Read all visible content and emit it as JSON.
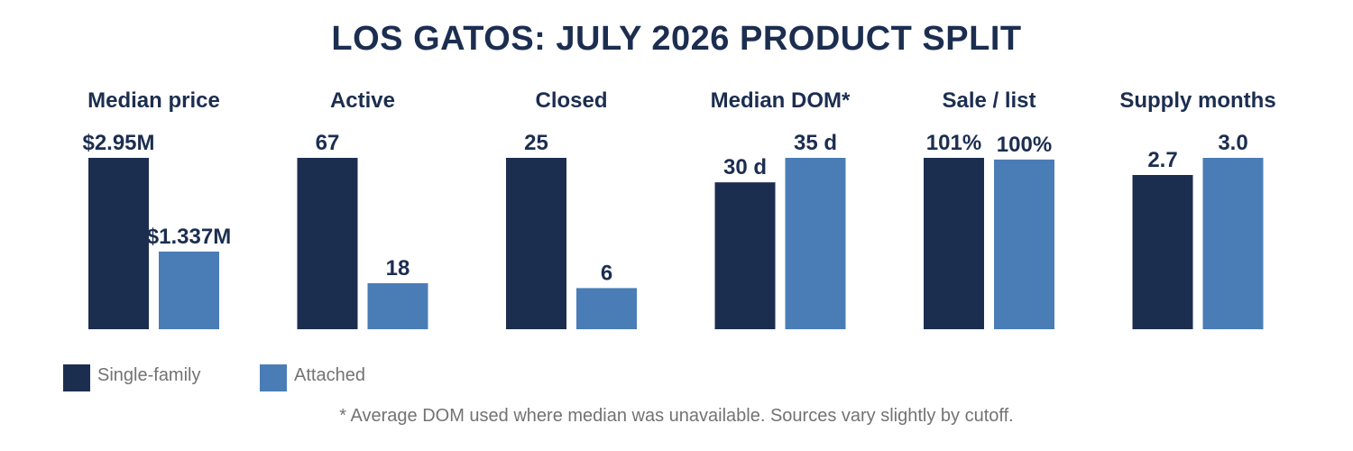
{
  "title": "LOS GATOS: JULY 2026 PRODUCT SPLIT",
  "colors": {
    "single_family": "#1c2e50",
    "attached": "#4a7db6",
    "text": "#1c2e50",
    "muted": "#737373"
  },
  "legend": {
    "single_family": "Single-family",
    "attached": "Attached"
  },
  "footnote": "* Average DOM used where median was unavailable. Sources vary slightly by cutoff.",
  "chart_data": [
    {
      "type": "bar",
      "title": "Median price",
      "categories": [
        "Single-family",
        "Attached"
      ],
      "values": [
        2.95,
        1.337
      ],
      "labels": [
        "$2.95M",
        "$1.337M"
      ]
    },
    {
      "type": "bar",
      "title": "Active",
      "categories": [
        "Single-family",
        "Attached"
      ],
      "values": [
        67,
        18
      ],
      "labels": [
        "67",
        "18"
      ]
    },
    {
      "type": "bar",
      "title": "Closed",
      "categories": [
        "Single-family",
        "Attached"
      ],
      "values": [
        25,
        6
      ],
      "labels": [
        "25",
        "6"
      ]
    },
    {
      "type": "bar",
      "title": "Median DOM*",
      "categories": [
        "Single-family",
        "Attached"
      ],
      "values": [
        30,
        35
      ],
      "labels": [
        "30 d",
        "35 d"
      ]
    },
    {
      "type": "bar",
      "title": "Sale / list",
      "categories": [
        "Single-family",
        "Attached"
      ],
      "values": [
        101,
        100
      ],
      "labels": [
        "101%",
        "100%"
      ]
    },
    {
      "type": "bar",
      "title": "Supply months",
      "categories": [
        "Single-family",
        "Attached"
      ],
      "values": [
        2.7,
        3.0
      ],
      "labels": [
        "2.7",
        "3.0"
      ]
    }
  ]
}
